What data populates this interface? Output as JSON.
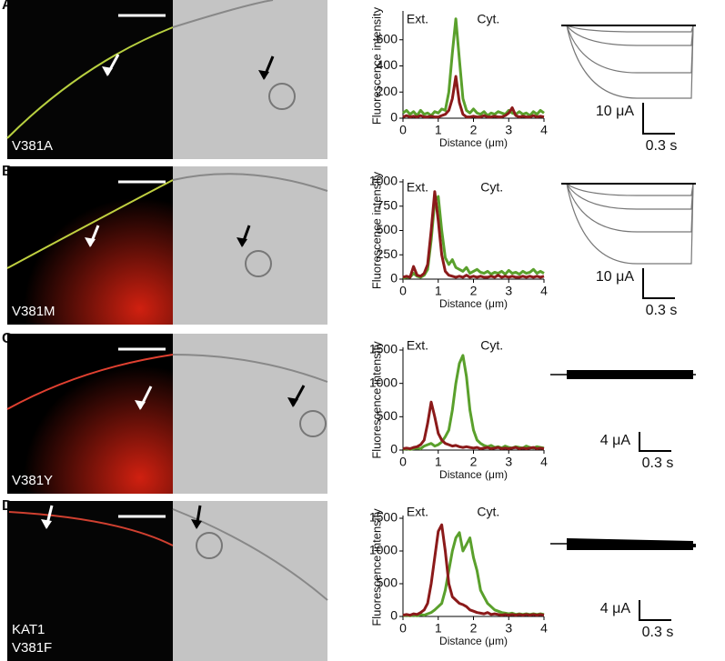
{
  "panels": [
    {
      "letter": "A",
      "image_label": [
        "V381A"
      ],
      "current_scale": "10 μA",
      "time_scale": "0.3 s"
    },
    {
      "letter": "B",
      "image_label": [
        "V381M"
      ],
      "current_scale": "10 μA",
      "time_scale": "0.3 s"
    },
    {
      "letter": "C",
      "image_label": [
        "V381Y"
      ],
      "current_scale": "4 μA",
      "time_scale": "0.3 s"
    },
    {
      "letter": "D",
      "image_label": [
        "KAT1",
        "V381F"
      ],
      "current_scale": "4 μA",
      "time_scale": "0.3 s"
    }
  ],
  "chart_data": [
    {
      "type": "line",
      "xlabel": "Distance (μm)",
      "ylabel": "Fluorescence intensity",
      "annotations": [
        "Ext.",
        "Cyt."
      ],
      "x": [
        0,
        0.1,
        0.2,
        0.3,
        0.4,
        0.5,
        0.6,
        0.7,
        0.8,
        0.9,
        1,
        1.1,
        1.2,
        1.3,
        1.4,
        1.5,
        1.6,
        1.7,
        1.8,
        1.9,
        2,
        2.1,
        2.2,
        2.3,
        2.4,
        2.5,
        2.6,
        2.7,
        2.8,
        2.9,
        3,
        3.1,
        3.2,
        3.3,
        3.4,
        3.5,
        3.6,
        3.7,
        3.8,
        3.9,
        4
      ],
      "xlim": [
        0,
        4
      ],
      "xticks": [
        0,
        1,
        2,
        3,
        4
      ],
      "ylim": [
        0,
        800
      ],
      "yticks": [
        0,
        200,
        400,
        600
      ],
      "series": [
        {
          "name": null,
          "color": "#5aa02c",
          "values": [
            40,
            60,
            30,
            50,
            20,
            60,
            30,
            40,
            20,
            50,
            40,
            70,
            60,
            200,
            500,
            760,
            450,
            150,
            60,
            40,
            70,
            40,
            30,
            50,
            20,
            40,
            30,
            50,
            40,
            30,
            60,
            40,
            30,
            50,
            30,
            40,
            20,
            50,
            30,
            60,
            40
          ]
        },
        {
          "name": null,
          "color": "#8b1a1a",
          "values": [
            10,
            20,
            10,
            15,
            10,
            20,
            10,
            10,
            15,
            10,
            10,
            20,
            30,
            60,
            150,
            320,
            120,
            30,
            10,
            10,
            15,
            10,
            10,
            20,
            10,
            10,
            15,
            10,
            10,
            20,
            40,
            80,
            20,
            10,
            15,
            10,
            10,
            20,
            10,
            15,
            10
          ]
        }
      ]
    },
    {
      "type": "line",
      "xlabel": "Distance (μm)",
      "ylabel": "Fluorescence intensity",
      "annotations": [
        "Ext.",
        "Cyt."
      ],
      "x": [
        0,
        0.1,
        0.2,
        0.3,
        0.4,
        0.5,
        0.6,
        0.7,
        0.8,
        0.9,
        1,
        1.1,
        1.2,
        1.3,
        1.4,
        1.5,
        1.6,
        1.7,
        1.8,
        1.9,
        2,
        2.1,
        2.2,
        2.3,
        2.4,
        2.5,
        2.6,
        2.7,
        2.8,
        2.9,
        3,
        3.1,
        3.2,
        3.3,
        3.4,
        3.5,
        3.6,
        3.7,
        3.8,
        3.9,
        4
      ],
      "xlim": [
        0,
        4
      ],
      "xticks": [
        0,
        1,
        2,
        3,
        4
      ],
      "ylim": [
        0,
        1000
      ],
      "yticks": [
        0,
        250,
        500,
        750,
        1000
      ],
      "series": [
        {
          "name": null,
          "color": "#5aa02c",
          "values": [
            10,
            20,
            20,
            60,
            30,
            20,
            40,
            100,
            400,
            800,
            850,
            500,
            220,
            150,
            200,
            120,
            100,
            80,
            120,
            60,
            80,
            100,
            70,
            60,
            80,
            50,
            70,
            60,
            80,
            50,
            90,
            60,
            70,
            50,
            80,
            60,
            70,
            100,
            60,
            80,
            60
          ]
        },
        {
          "name": null,
          "color": "#8b1a1a",
          "values": [
            20,
            30,
            20,
            130,
            40,
            30,
            60,
            150,
            500,
            900,
            600,
            250,
            80,
            40,
            30,
            20,
            30,
            20,
            40,
            20,
            30,
            20,
            30,
            20,
            20,
            30,
            20,
            40,
            20,
            30,
            20,
            30,
            20,
            20,
            30,
            20,
            30,
            20,
            30,
            20,
            30
          ]
        }
      ]
    },
    {
      "type": "line",
      "xlabel": "Distance (μm)",
      "ylabel": "Fluorescence intensity",
      "annotations": [
        "Ext.",
        "Cyt."
      ],
      "x": [
        0,
        0.1,
        0.2,
        0.3,
        0.4,
        0.5,
        0.6,
        0.7,
        0.8,
        0.9,
        1,
        1.1,
        1.2,
        1.3,
        1.4,
        1.5,
        1.6,
        1.7,
        1.8,
        1.9,
        2,
        2.1,
        2.2,
        2.3,
        2.4,
        2.5,
        2.6,
        2.7,
        2.8,
        2.9,
        3,
        3.1,
        3.2,
        3.3,
        3.4,
        3.5,
        3.6,
        3.7,
        3.8,
        3.9,
        4
      ],
      "xlim": [
        0,
        4
      ],
      "xticks": [
        0,
        1,
        2,
        3,
        4
      ],
      "ylim": [
        0,
        1500
      ],
      "yticks": [
        0,
        500,
        1000,
        1500
      ],
      "series": [
        {
          "name": null,
          "color": "#5aa02c",
          "values": [
            10,
            20,
            10,
            20,
            30,
            20,
            60,
            80,
            100,
            60,
            80,
            120,
            200,
            300,
            600,
            1000,
            1300,
            1420,
            1100,
            600,
            300,
            150,
            100,
            70,
            50,
            70,
            40,
            50,
            30,
            60,
            40,
            30,
            50,
            40,
            30,
            60,
            40,
            30,
            50,
            40,
            30
          ]
        },
        {
          "name": null,
          "color": "#8b1a1a",
          "values": [
            20,
            30,
            20,
            40,
            50,
            80,
            150,
            400,
            720,
            500,
            250,
            150,
            100,
            80,
            60,
            70,
            50,
            40,
            50,
            40,
            30,
            40,
            20,
            30,
            40,
            20,
            30,
            40,
            20,
            30,
            20,
            30,
            40,
            20,
            30,
            20,
            30,
            40,
            20,
            30,
            20
          ]
        }
      ]
    },
    {
      "type": "line",
      "xlabel": "Distance (μm)",
      "ylabel": "Fluorescence intensity",
      "annotations": [
        "Ext.",
        "Cyt."
      ],
      "x": [
        0,
        0.1,
        0.2,
        0.3,
        0.4,
        0.5,
        0.6,
        0.7,
        0.8,
        0.9,
        1,
        1.1,
        1.2,
        1.3,
        1.4,
        1.5,
        1.6,
        1.7,
        1.8,
        1.9,
        2,
        2.1,
        2.2,
        2.3,
        2.4,
        2.5,
        2.6,
        2.7,
        2.8,
        2.9,
        3,
        3.1,
        3.2,
        3.3,
        3.4,
        3.5,
        3.6,
        3.7,
        3.8,
        3.9,
        4
      ],
      "xlim": [
        0,
        4
      ],
      "xticks": [
        0,
        1,
        2,
        3,
        4
      ],
      "ylim": [
        0,
        1500
      ],
      "yticks": [
        0,
        500,
        1000,
        1500
      ],
      "series": [
        {
          "name": null,
          "color": "#5aa02c",
          "values": [
            10,
            20,
            10,
            20,
            10,
            30,
            20,
            40,
            60,
            100,
            150,
            200,
            400,
            700,
            1000,
            1200,
            1280,
            1000,
            1100,
            1200,
            900,
            700,
            400,
            300,
            200,
            150,
            100,
            80,
            60,
            50,
            40,
            50,
            30,
            40,
            30,
            40,
            30,
            40,
            30,
            40,
            30
          ]
        },
        {
          "name": null,
          "color": "#8b1a1a",
          "values": [
            20,
            30,
            20,
            40,
            30,
            60,
            100,
            200,
            500,
            900,
            1300,
            1400,
            1000,
            500,
            300,
            250,
            200,
            180,
            150,
            100,
            80,
            60,
            50,
            40,
            60,
            30,
            40,
            30,
            20,
            30,
            20,
            30,
            20,
            30,
            20,
            30,
            20,
            30,
            20,
            30,
            20
          ]
        }
      ]
    }
  ]
}
